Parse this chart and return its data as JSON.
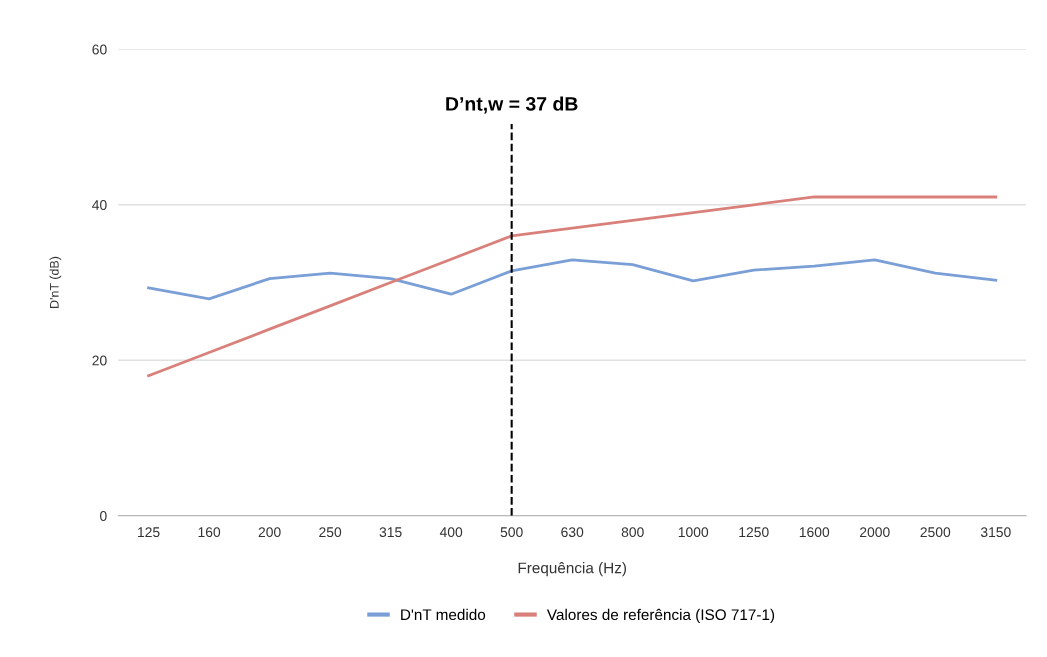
{
  "chart_data": {
    "type": "line",
    "xlabel": "Frequência (Hz)",
    "ylabel": "D'nT (dB)",
    "categories": [
      "125",
      "160",
      "200",
      "250",
      "315",
      "400",
      "500",
      "630",
      "800",
      "1000",
      "1250",
      "1600",
      "2000",
      "2500",
      "3150"
    ],
    "series": [
      {
        "name": "D'nT medido",
        "color": "#7a9fd6",
        "values": [
          29.3,
          27.9,
          30.5,
          31.2,
          30.5,
          28.5,
          31.5,
          32.9,
          32.3,
          30.2,
          31.6,
          32.1,
          32.9,
          31.2,
          30.3
        ]
      },
      {
        "name": "Valores de referência (ISO 717-1)",
        "color": "#d9807a",
        "values": [
          18,
          21,
          24,
          27,
          30,
          33,
          36,
          37,
          38,
          39,
          40,
          41,
          41,
          41,
          41
        ]
      }
    ],
    "ylim": [
      0,
      60
    ],
    "yticks": [
      0,
      20,
      40,
      60
    ],
    "grid": "y",
    "legend": "bottom",
    "marker": "none",
    "line_style": "solid",
    "ref_lines": [
      {
        "axis": "x",
        "value": "500",
        "label": "D’nt,w = 37 dB",
        "color": "#000000",
        "line_style": "dashed"
      }
    ]
  }
}
